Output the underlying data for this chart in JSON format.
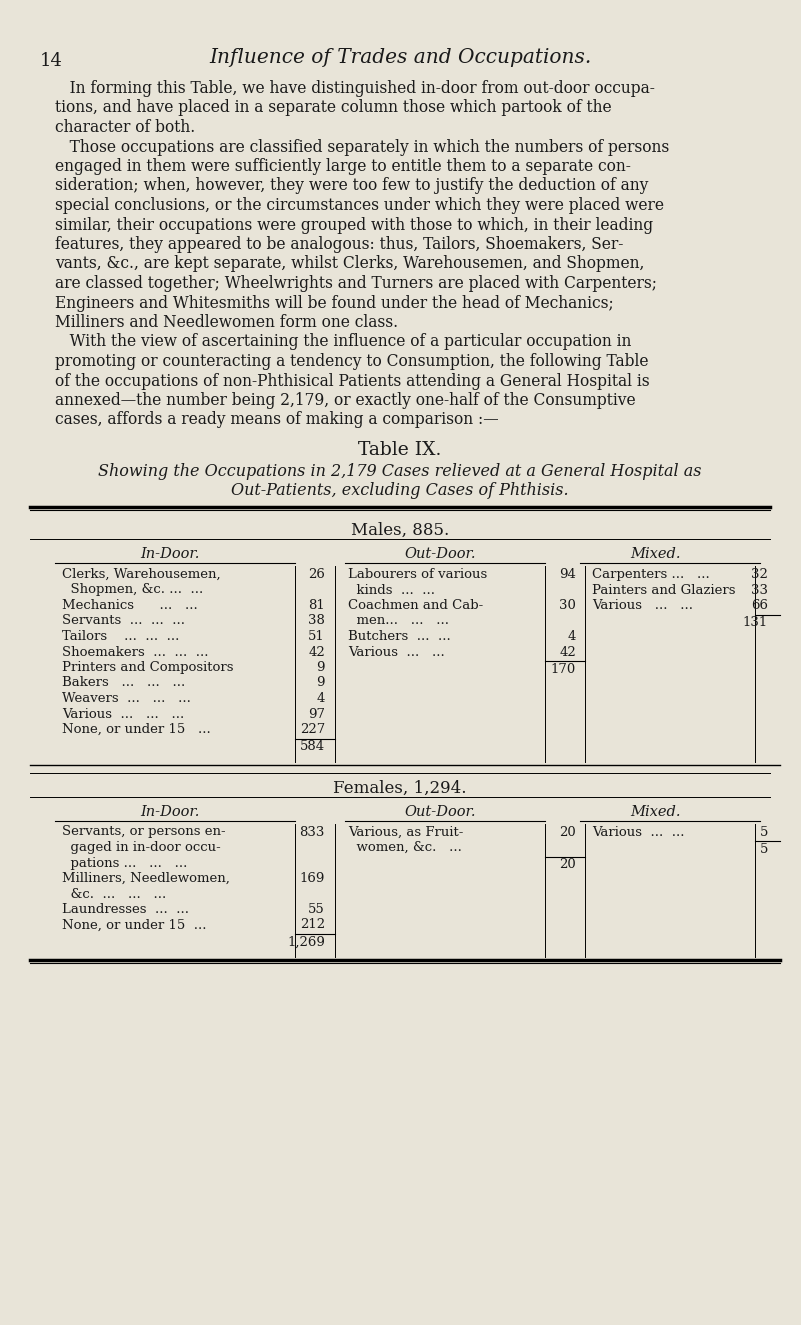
{
  "bg_color": "#e8e4d8",
  "page_number": "14",
  "page_title": "Influence of Trades and Occupations.",
  "body_text": [
    "   In forming this Table, we have distinguished in-door from out-door occupa-",
    "tions, and have placed in a separate column those which partook of the",
    "character of both.",
    "   Those occupations are classified separately in which the numbers of persons",
    "engaged in them were sufficiently large to entitle them to a separate con-",
    "sideration; when, however, they were too few to justify the deduction of any",
    "special conclusions, or the circumstances under which they were placed were",
    "similar, their occupations were grouped with those to which, in their leading",
    "features, they appeared to be analogous: thus, Tailors, Shoemakers, Ser-",
    "vants, &c., are kept separate, whilst Clerks, Warehousemen, and Shopmen,",
    "are classed together; Wheelwrights and Turners are placed with Carpenters;",
    "Engineers and Whitesmiths will be found under the head of Mechanics;",
    "Milliners and Needlewomen form one class.",
    "   With the view of ascertaining the influence of a particular occupation in",
    "promoting or counteracting a tendency to Consumption, the following Table",
    "of the occupations of non-Phthisical Patients attending a General Hospital is",
    "annexed—the number being 2,179, or exactly one-half of the Consumptive",
    "cases, affords a ready means of making a comparison :—"
  ],
  "table_title": "Table IX.",
  "table_subtitle_line1": "Showing the Occupations in 2,179 Cases relieved at a General Hospital as",
  "table_subtitle_line2": "Out-Patients, excluding Cases of Phthisis.",
  "males_header": "Males, 885.",
  "females_header": "Females, 1,294.",
  "males_indoors_total": "584",
  "males_outdoors_total": "170",
  "males_mixed_total": "131",
  "females_indoors_total": "1,269",
  "females_outdoors_total": "20",
  "females_mixed_total": "5"
}
